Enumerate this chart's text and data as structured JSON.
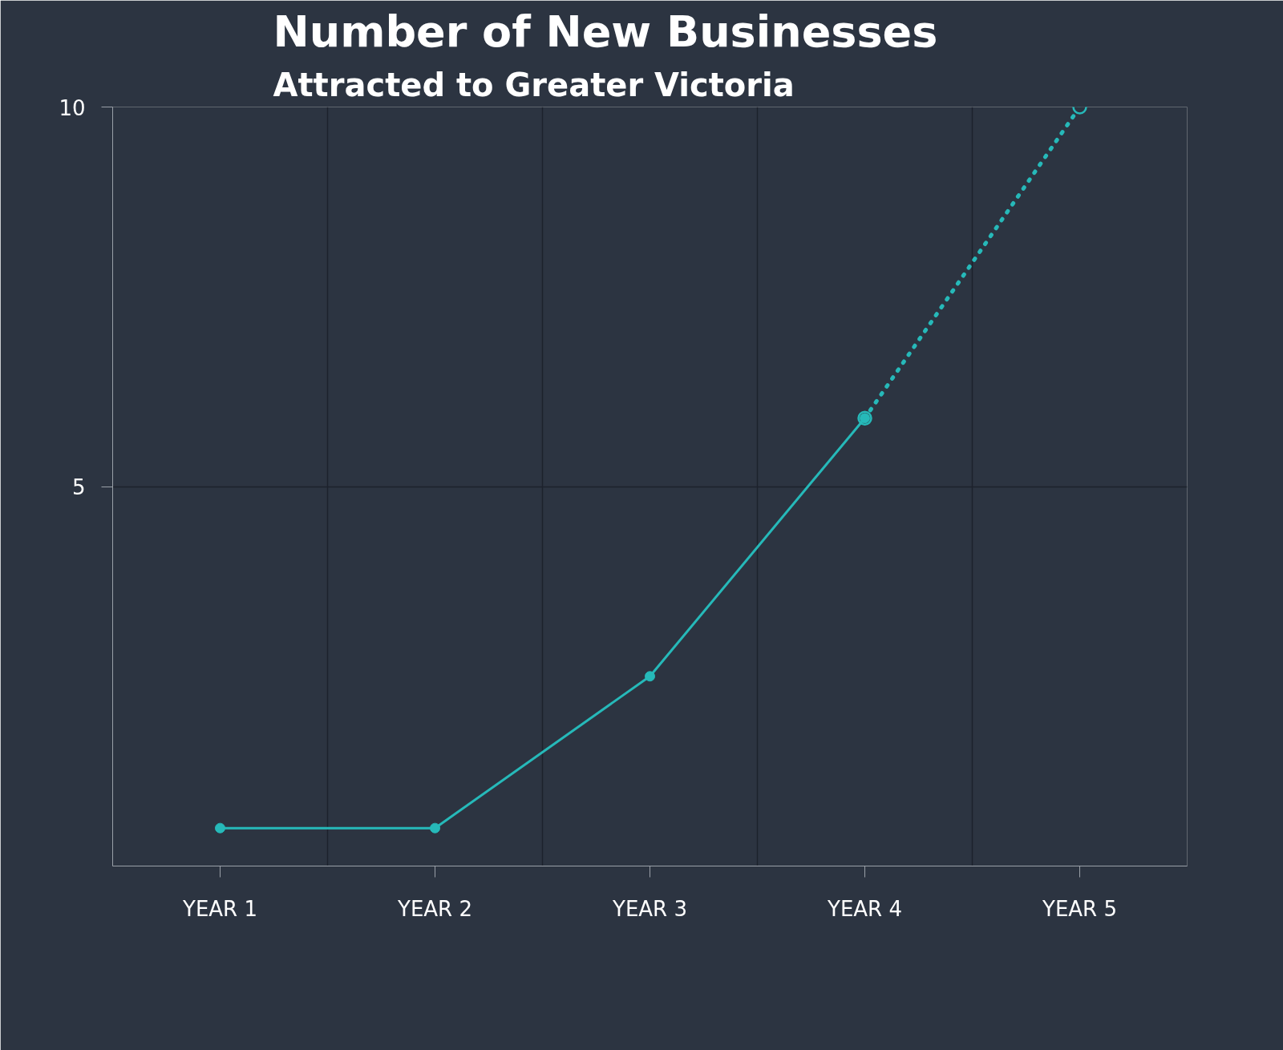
{
  "chart_data": {
    "type": "line",
    "title": "Number of New Businesses",
    "subtitle": "Attracted to Greater Victoria",
    "categories": [
      "YEAR 1",
      "YEAR 2",
      "YEAR 3",
      "YEAR 4",
      "YEAR 5"
    ],
    "series": [
      {
        "color": "#26b9b9",
        "values": [
          0.5,
          0.5,
          2.5,
          5.9,
          null
        ],
        "line_style": "solid",
        "marker": "circle"
      },
      {
        "color": "#26b9b9",
        "values": [
          null,
          null,
          null,
          5.9,
          10
        ],
        "line_style": "dotted",
        "marker": "circle"
      }
    ],
    "ylim": [
      0,
      10
    ],
    "yticks": [
      5,
      10
    ],
    "grid": true
  }
}
